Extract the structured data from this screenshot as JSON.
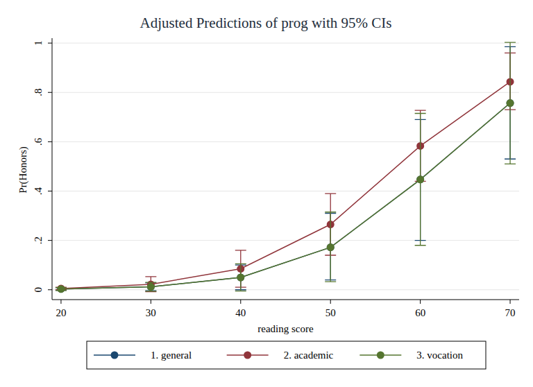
{
  "chart_data": {
    "type": "line",
    "title": "Adjusted Predictions of prog with 95% CIs",
    "x_label": "reading score",
    "y_label": "Pr(Honors)",
    "x": [
      20,
      30,
      40,
      50,
      60,
      70
    ],
    "series": [
      {
        "name": "1. general",
        "color": "#1a476f",
        "marker": "circle",
        "line_style": "solid",
        "values": [
          0.003,
          0.012,
          0.05,
          0.172,
          0.447,
          0.757
        ],
        "lower": [
          -0.002,
          -0.004,
          0.0,
          0.04,
          0.2,
          0.53
        ],
        "upper": [
          0.008,
          0.028,
          0.1,
          0.31,
          0.69,
          0.985
        ]
      },
      {
        "name": "2. academic",
        "color": "#90353b",
        "marker": "circle",
        "line_style": "solid",
        "values": [
          0.005,
          0.022,
          0.085,
          0.265,
          0.583,
          0.843
        ],
        "lower": [
          0.0,
          -0.008,
          0.01,
          0.14,
          0.44,
          0.73
        ],
        "upper": [
          0.01,
          0.053,
          0.16,
          0.39,
          0.727,
          0.96
        ]
      },
      {
        "name": "3. vocation",
        "color": "#55752f",
        "marker": "circle",
        "line_style": "solid",
        "values": [
          0.003,
          0.012,
          0.05,
          0.172,
          0.447,
          0.757
        ],
        "lower": [
          -0.003,
          -0.006,
          -0.005,
          0.033,
          0.18,
          0.51
        ],
        "upper": [
          0.009,
          0.03,
          0.105,
          0.315,
          0.715,
          1.003
        ]
      }
    ],
    "xlim": [
      19,
      71
    ],
    "ylim": [
      -0.04,
      1.02
    ],
    "xticks": [
      20,
      30,
      40,
      50,
      60,
      70
    ],
    "yticks": [
      0,
      {
        "value": 0.2,
        "label": ".2"
      },
      {
        "value": 0.4,
        "label": ".4"
      },
      {
        "value": 0.6,
        "label": ".6"
      },
      {
        "value": 0.8,
        "label": ".8"
      },
      1
    ],
    "grid": true,
    "legend": "bottom"
  }
}
